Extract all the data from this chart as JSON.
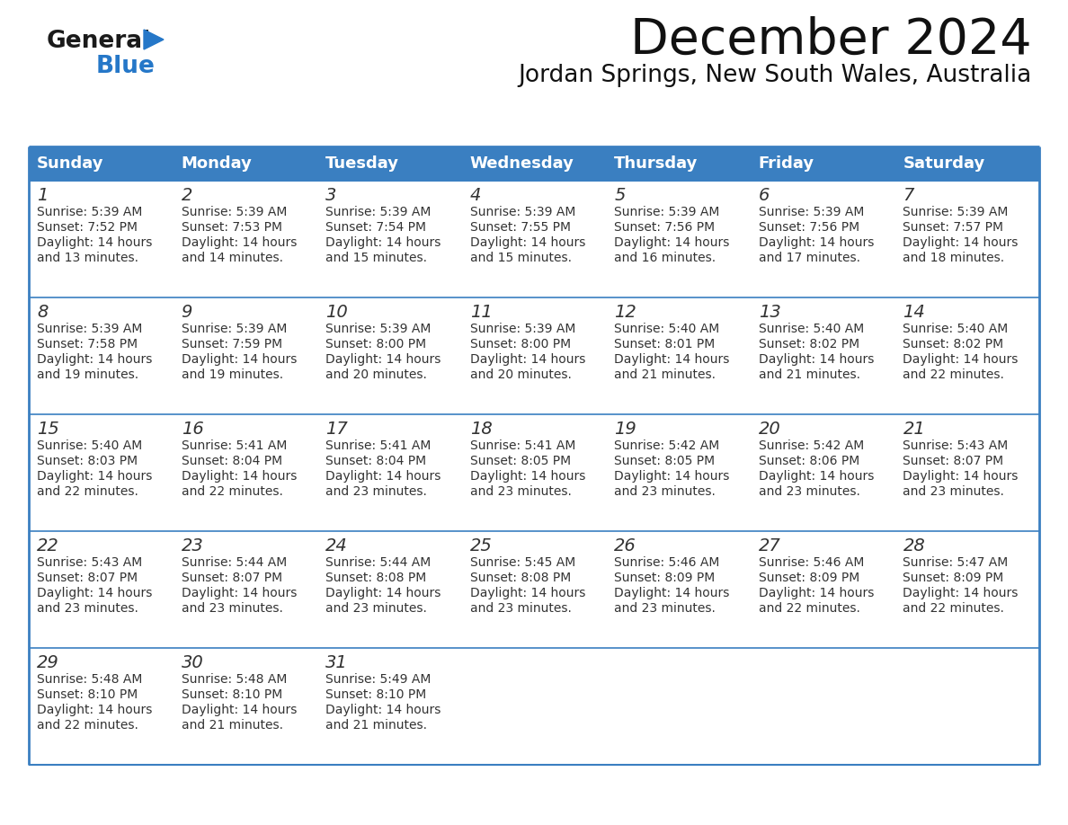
{
  "title": "December 2024",
  "subtitle": "Jordan Springs, New South Wales, Australia",
  "header_color": "#3a7fc1",
  "header_text_color": "#ffffff",
  "cell_bg": "#ffffff",
  "cell_bg_last": "#f0f4f8",
  "border_color": "#3a7fc1",
  "text_color": "#333333",
  "days_of_week": [
    "Sunday",
    "Monday",
    "Tuesday",
    "Wednesday",
    "Thursday",
    "Friday",
    "Saturday"
  ],
  "logo_color1": "#1a1a1a",
  "logo_color2": "#2577c8",
  "calendar": [
    [
      {
        "day": 1,
        "sunrise": "5:39 AM",
        "sunset": "7:52 PM",
        "daylight": "14 hours and 13 minutes."
      },
      {
        "day": 2,
        "sunrise": "5:39 AM",
        "sunset": "7:53 PM",
        "daylight": "14 hours and 14 minutes."
      },
      {
        "day": 3,
        "sunrise": "5:39 AM",
        "sunset": "7:54 PM",
        "daylight": "14 hours and 15 minutes."
      },
      {
        "day": 4,
        "sunrise": "5:39 AM",
        "sunset": "7:55 PM",
        "daylight": "14 hours and 15 minutes."
      },
      {
        "day": 5,
        "sunrise": "5:39 AM",
        "sunset": "7:56 PM",
        "daylight": "14 hours and 16 minutes."
      },
      {
        "day": 6,
        "sunrise": "5:39 AM",
        "sunset": "7:56 PM",
        "daylight": "14 hours and 17 minutes."
      },
      {
        "day": 7,
        "sunrise": "5:39 AM",
        "sunset": "7:57 PM",
        "daylight": "14 hours and 18 minutes."
      }
    ],
    [
      {
        "day": 8,
        "sunrise": "5:39 AM",
        "sunset": "7:58 PM",
        "daylight": "14 hours and 19 minutes."
      },
      {
        "day": 9,
        "sunrise": "5:39 AM",
        "sunset": "7:59 PM",
        "daylight": "14 hours and 19 minutes."
      },
      {
        "day": 10,
        "sunrise": "5:39 AM",
        "sunset": "8:00 PM",
        "daylight": "14 hours and 20 minutes."
      },
      {
        "day": 11,
        "sunrise": "5:39 AM",
        "sunset": "8:00 PM",
        "daylight": "14 hours and 20 minutes."
      },
      {
        "day": 12,
        "sunrise": "5:40 AM",
        "sunset": "8:01 PM",
        "daylight": "14 hours and 21 minutes."
      },
      {
        "day": 13,
        "sunrise": "5:40 AM",
        "sunset": "8:02 PM",
        "daylight": "14 hours and 21 minutes."
      },
      {
        "day": 14,
        "sunrise": "5:40 AM",
        "sunset": "8:02 PM",
        "daylight": "14 hours and 22 minutes."
      }
    ],
    [
      {
        "day": 15,
        "sunrise": "5:40 AM",
        "sunset": "8:03 PM",
        "daylight": "14 hours and 22 minutes."
      },
      {
        "day": 16,
        "sunrise": "5:41 AM",
        "sunset": "8:04 PM",
        "daylight": "14 hours and 22 minutes."
      },
      {
        "day": 17,
        "sunrise": "5:41 AM",
        "sunset": "8:04 PM",
        "daylight": "14 hours and 23 minutes."
      },
      {
        "day": 18,
        "sunrise": "5:41 AM",
        "sunset": "8:05 PM",
        "daylight": "14 hours and 23 minutes."
      },
      {
        "day": 19,
        "sunrise": "5:42 AM",
        "sunset": "8:05 PM",
        "daylight": "14 hours and 23 minutes."
      },
      {
        "day": 20,
        "sunrise": "5:42 AM",
        "sunset": "8:06 PM",
        "daylight": "14 hours and 23 minutes."
      },
      {
        "day": 21,
        "sunrise": "5:43 AM",
        "sunset": "8:07 PM",
        "daylight": "14 hours and 23 minutes."
      }
    ],
    [
      {
        "day": 22,
        "sunrise": "5:43 AM",
        "sunset": "8:07 PM",
        "daylight": "14 hours and 23 minutes."
      },
      {
        "day": 23,
        "sunrise": "5:44 AM",
        "sunset": "8:07 PM",
        "daylight": "14 hours and 23 minutes."
      },
      {
        "day": 24,
        "sunrise": "5:44 AM",
        "sunset": "8:08 PM",
        "daylight": "14 hours and 23 minutes."
      },
      {
        "day": 25,
        "sunrise": "5:45 AM",
        "sunset": "8:08 PM",
        "daylight": "14 hours and 23 minutes."
      },
      {
        "day": 26,
        "sunrise": "5:46 AM",
        "sunset": "8:09 PM",
        "daylight": "14 hours and 23 minutes."
      },
      {
        "day": 27,
        "sunrise": "5:46 AM",
        "sunset": "8:09 PM",
        "daylight": "14 hours and 22 minutes."
      },
      {
        "day": 28,
        "sunrise": "5:47 AM",
        "sunset": "8:09 PM",
        "daylight": "14 hours and 22 minutes."
      }
    ],
    [
      {
        "day": 29,
        "sunrise": "5:48 AM",
        "sunset": "8:10 PM",
        "daylight": "14 hours and 22 minutes."
      },
      {
        "day": 30,
        "sunrise": "5:48 AM",
        "sunset": "8:10 PM",
        "daylight": "14 hours and 21 minutes."
      },
      {
        "day": 31,
        "sunrise": "5:49 AM",
        "sunset": "8:10 PM",
        "daylight": "14 hours and 21 minutes."
      },
      null,
      null,
      null,
      null
    ]
  ]
}
